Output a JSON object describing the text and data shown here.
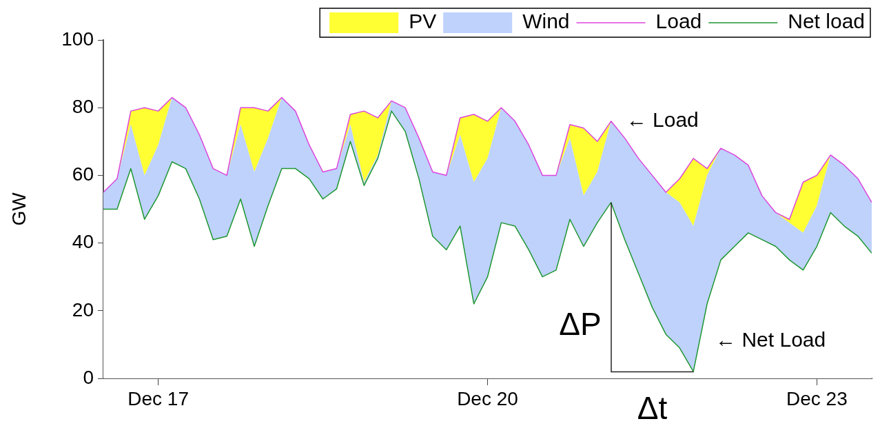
{
  "chart_data": {
    "type": "area",
    "ylabel": "GW",
    "stacked": true,
    "legend": "top right",
    "x": [
      "--12-16T12:00",
      "--12-16T15:00",
      "--12-16T18:00",
      "--12-16T21:00",
      "--12-17T00:00",
      "--12-17T03:00",
      "--12-17T06:00",
      "--12-17T09:00",
      "--12-17T12:00",
      "--12-17T15:00",
      "--12-17T18:00",
      "--12-17T21:00",
      "--12-18T00:00",
      "--12-18T03:00",
      "--12-18T06:00",
      "--12-18T09:00",
      "--12-18T12:00",
      "--12-18T15:00",
      "--12-18T18:00",
      "--12-18T21:00",
      "--12-19T00:00",
      "--12-19T03:00",
      "--12-19T06:00",
      "--12-19T09:00",
      "--12-19T12:00",
      "--12-19T15:00",
      "--12-19T18:00",
      "--12-19T21:00",
      "--12-20T00:00",
      "--12-20T03:00",
      "--12-20T06:00",
      "--12-20T09:00",
      "--12-20T12:00",
      "--12-20T15:00",
      "--12-20T18:00",
      "--12-20T21:00",
      "--12-21T00:00",
      "--12-21T03:00",
      "--12-21T06:00",
      "--12-21T09:00",
      "--12-21T12:00",
      "--12-21T15:00",
      "--12-21T18:00",
      "--12-21T21:00",
      "--12-22T00:00",
      "--12-22T03:00",
      "--12-22T06:00",
      "--12-22T09:00",
      "--12-22T12:00",
      "--12-22T15:00",
      "--12-22T18:00",
      "--12-22T21:00",
      "--12-23T00:00",
      "--12-23T03:00",
      "--12-23T06:00",
      "--12-23T09:00",
      "--12-23T12:00"
    ],
    "series": [
      {
        "name": "Net load",
        "type": "area",
        "color": "#1e9632",
        "values": [
          50,
          50,
          62,
          47,
          54,
          64,
          62,
          53,
          41,
          42,
          53,
          39,
          51,
          62,
          62,
          59,
          53,
          56,
          70,
          57,
          65,
          79,
          73,
          59,
          42,
          38,
          45,
          22,
          30,
          46,
          45,
          38,
          30,
          32,
          47,
          39,
          46,
          52,
          41,
          31,
          21,
          13,
          9,
          2,
          22,
          35,
          39,
          43,
          41,
          39,
          35,
          32,
          39,
          49,
          45,
          42,
          37
        ]
      },
      {
        "name": "Wind",
        "type": "area",
        "color": "#bed2fc",
        "values": [
          5,
          9,
          13,
          13,
          15,
          19,
          18,
          19,
          21,
          18,
          22,
          22,
          20,
          21,
          17,
          10,
          8,
          6,
          5,
          1,
          1,
          3,
          7,
          12,
          19,
          22,
          27,
          36,
          35,
          34,
          31,
          31,
          30,
          28,
          24,
          15,
          15,
          24,
          30,
          34,
          39,
          42,
          43,
          43,
          38,
          33,
          27,
          20,
          13,
          10,
          11,
          11,
          12,
          17,
          18,
          17,
          15
        ]
      },
      {
        "name": "PV",
        "type": "area",
        "color": "#ffff33",
        "values": [
          0,
          0,
          4,
          20,
          10,
          0,
          0,
          0,
          0,
          0,
          5,
          19,
          8,
          0,
          0,
          0,
          0,
          0,
          3,
          21,
          11,
          0,
          0,
          0,
          0,
          0,
          5,
          20,
          11,
          0,
          0,
          0,
          0,
          0,
          4,
          20,
          9,
          0,
          0,
          0,
          0,
          0,
          7,
          20,
          2,
          0,
          0,
          0,
          0,
          0,
          1,
          15,
          9,
          0,
          0,
          0,
          0
        ]
      },
      {
        "name": "Load",
        "type": "line",
        "color": "#dd44dd",
        "values": [
          55,
          59,
          79,
          80,
          79,
          83,
          80,
          72,
          62,
          60,
          80,
          80,
          79,
          83,
          79,
          69,
          61,
          62,
          78,
          79,
          77,
          82,
          80,
          71,
          61,
          60,
          77,
          78,
          76,
          80,
          76,
          69,
          60,
          60,
          75,
          74,
          70,
          76,
          71,
          65,
          60,
          55,
          59,
          65,
          62,
          68,
          66,
          63,
          54,
          49,
          47,
          58,
          60,
          66,
          63,
          59,
          52
        ]
      }
    ],
    "xlim": [
      "--12-16T12:00",
      "--12-23T12:00"
    ],
    "xticks": [
      {
        "value": "--12-17",
        "label": "Dec 17"
      },
      {
        "value": "--12-20",
        "label": "Dec 20"
      },
      {
        "value": "--12-23",
        "label": "Dec 23"
      }
    ],
    "ylim": [
      0,
      100
    ],
    "yticks": [
      0,
      20,
      40,
      60,
      80,
      100
    ],
    "annotations": [
      {
        "text": "← Load",
        "x": "--12-21T03:00",
        "y": 76
      },
      {
        "text": "← Net Load",
        "x": "--12-21T22:30",
        "y": 11
      },
      {
        "text": "ΔP",
        "x": "--12-21T03:00",
        "y": 52
      },
      {
        "text": "Δt",
        "x": "--12-21T21:00",
        "y": 2
      }
    ]
  }
}
